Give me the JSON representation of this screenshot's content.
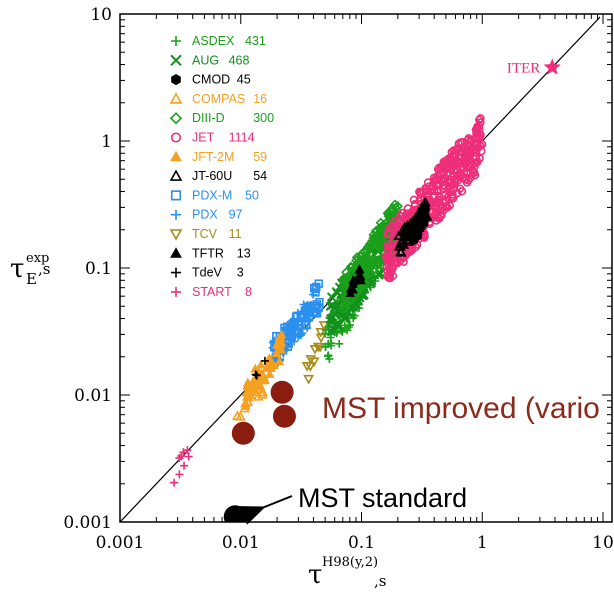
{
  "chart_data": {
    "type": "scatter",
    "x_scale": "log",
    "y_scale": "log",
    "xlim": [
      0.001,
      10
    ],
    "ylim": [
      0.001,
      10
    ],
    "x_ticks": [
      "0.001",
      "0.01",
      "0.1",
      "1",
      "10"
    ],
    "y_ticks": [
      "0.001",
      "0.01",
      "0.1",
      "1",
      "10"
    ],
    "xlabel": {
      "symbol": "τ",
      "sup": "H98(y,2)",
      "sub": ",s"
    },
    "ylabel": {
      "symbol": "τ",
      "sup": "exp",
      "sub": "E",
      "tail": ",s"
    },
    "grid": false,
    "legend_position": "top-left",
    "reference_line": {
      "from": [
        0.001,
        0.001
      ],
      "to": [
        10,
        10
      ],
      "color": "#000000"
    },
    "series": [
      {
        "name": "ASDEX",
        "count": "431",
        "marker": "plus",
        "color": "#1aa01a",
        "xr": [
          0.05,
          0.16
        ],
        "yr": [
          0.025,
          0.17
        ]
      },
      {
        "name": "AUG",
        "count": "468",
        "marker": "x",
        "color": "#12901c",
        "xr": [
          0.055,
          0.2
        ],
        "yr": [
          0.04,
          0.2
        ]
      },
      {
        "name": "CMOD",
        "count": "45",
        "marker": "hexagon",
        "color": "#000000",
        "xr": [
          0.27,
          0.34
        ],
        "yr": [
          0.18,
          0.28
        ]
      },
      {
        "name": "COMPAS",
        "count": "16",
        "marker": "triangle-open",
        "color": "#f4a020",
        "xr": [
          0.009,
          0.016
        ],
        "yr": [
          0.007,
          0.013
        ]
      },
      {
        "name": "DIII-D",
        "count": "300",
        "marker": "diamond-open",
        "color": "#1aa01a",
        "xr": [
          0.07,
          0.2
        ],
        "yr": [
          0.06,
          0.25
        ]
      },
      {
        "name": "JET",
        "count": "1114",
        "marker": "circle-open",
        "color": "#ee2e78",
        "xr": [
          0.16,
          1.0
        ],
        "yr": [
          0.12,
          1.0
        ]
      },
      {
        "name": "JFT-2M",
        "count": "59",
        "marker": "triangle",
        "color": "#f4a020",
        "xr": [
          0.011,
          0.022
        ],
        "yr": [
          0.01,
          0.025
        ]
      },
      {
        "name": "JT-60U",
        "count": "54",
        "marker": "triangle-open",
        "color": "#000000",
        "xr": [
          0.2,
          0.35
        ],
        "yr": [
          0.15,
          0.28
        ]
      },
      {
        "name": "PDX-M",
        "count": "50",
        "marker": "square-open",
        "color": "#2a90f0",
        "xr": [
          0.018,
          0.045
        ],
        "yr": [
          0.022,
          0.06
        ]
      },
      {
        "name": "PDX",
        "count": "97",
        "marker": "plus",
        "color": "#2a90f0",
        "xr": [
          0.018,
          0.04
        ],
        "yr": [
          0.02,
          0.05
        ]
      },
      {
        "name": "TCV",
        "count": "11",
        "marker": "triangle-down-open",
        "color": "#a88a1a",
        "xr": [
          0.035,
          0.05
        ],
        "yr": [
          0.015,
          0.03
        ]
      },
      {
        "name": "TFTR",
        "count": "13",
        "marker": "triangle",
        "color": "#000000",
        "xr": [
          0.08,
          0.1
        ],
        "yr": [
          0.07,
          0.09
        ]
      },
      {
        "name": "TdeV",
        "count": "3",
        "marker": "plus",
        "color": "#000000",
        "xr": [
          0.013,
          0.016
        ],
        "yr": [
          0.014,
          0.017
        ]
      },
      {
        "name": "START",
        "count": "8",
        "marker": "plus",
        "color": "#ee2e78",
        "xr": [
          0.0027,
          0.0045
        ],
        "yr": [
          0.0022,
          0.0042
        ]
      }
    ],
    "mst_improved": {
      "color": "#8b1c10",
      "points": [
        [
          0.0105,
          0.005
        ],
        [
          0.022,
          0.0105
        ],
        [
          0.023,
          0.0068
        ]
      ]
    },
    "mst_standard": {
      "color": "#000000",
      "points": [
        [
          0.009,
          0.0011
        ]
      ]
    },
    "iter": {
      "label": "ITER",
      "x": 3.8,
      "y": 3.8,
      "color": "#ee2e78"
    },
    "annotations": {
      "mst_improved_label": "MST improved (vario",
      "mst_standard_label": "MST standard"
    }
  }
}
